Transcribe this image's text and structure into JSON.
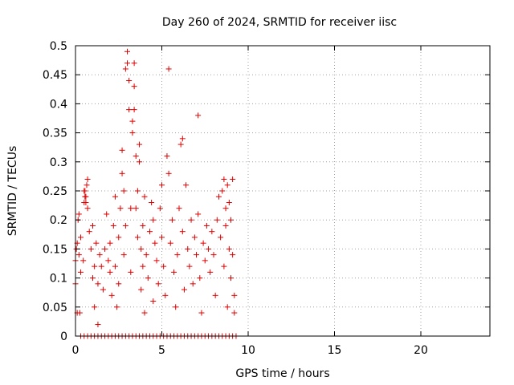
{
  "chart_data": {
    "type": "scatter",
    "title": "Day 260 of 2024, SRMTID for receiver iisc",
    "xlabel": "GPS time / hours",
    "ylabel": "SRMTID / TECUs",
    "xlim": [
      0,
      24
    ],
    "ylim": [
      0,
      0.5
    ],
    "x_ticks": [
      0,
      5,
      10,
      15,
      20
    ],
    "x_tick_labels": [
      "0",
      "5",
      "10",
      "15",
      "20"
    ],
    "y_ticks": [
      0,
      0.05,
      0.1,
      0.15,
      0.2,
      0.25,
      0.3,
      0.35,
      0.4,
      0.45,
      0.5
    ],
    "y_tick_labels": [
      "0",
      "0.05",
      "0.1",
      "0.15",
      "0.2",
      "0.25",
      "0.3",
      "0.35",
      "0.4",
      "0.45",
      "0.5"
    ],
    "grid": true,
    "marker": "plus",
    "marker_color": "#dd0000",
    "points": [
      [
        0.0,
        0.09
      ],
      [
        0.0,
        0.13
      ],
      [
        0.05,
        0.15
      ],
      [
        0.1,
        0.16
      ],
      [
        0.1,
        0.04
      ],
      [
        0.15,
        0.2
      ],
      [
        0.2,
        0.21
      ],
      [
        0.2,
        0.14
      ],
      [
        0.25,
        0.04
      ],
      [
        0.3,
        0.17
      ],
      [
        0.3,
        0.11
      ],
      [
        0.45,
        0.13
      ],
      [
        0.5,
        0.23
      ],
      [
        0.55,
        0.25
      ],
      [
        0.6,
        0.24
      ],
      [
        0.65,
        0.26
      ],
      [
        0.7,
        0.27
      ],
      [
        0.6,
        0.23
      ],
      [
        0.5,
        0.25
      ],
      [
        0.7,
        0.22
      ],
      [
        0.55,
        0.24
      ],
      [
        0.8,
        0.18
      ],
      [
        0.9,
        0.15
      ],
      [
        1.0,
        0.1
      ],
      [
        1.0,
        0.19
      ],
      [
        1.1,
        0.12
      ],
      [
        1.1,
        0.05
      ],
      [
        1.2,
        0.16
      ],
      [
        1.3,
        0.09
      ],
      [
        1.3,
        0.02
      ],
      [
        1.4,
        0.14
      ],
      [
        1.5,
        0.12
      ],
      [
        1.6,
        0.08
      ],
      [
        1.7,
        0.15
      ],
      [
        1.8,
        0.21
      ],
      [
        1.9,
        0.13
      ],
      [
        2.0,
        0.11
      ],
      [
        2.0,
        0.16
      ],
      [
        2.1,
        0.07
      ],
      [
        2.2,
        0.19
      ],
      [
        2.3,
        0.24
      ],
      [
        2.3,
        0.12
      ],
      [
        2.4,
        0.05
      ],
      [
        2.5,
        0.09
      ],
      [
        2.5,
        0.17
      ],
      [
        2.6,
        0.22
      ],
      [
        2.7,
        0.28
      ],
      [
        2.7,
        0.32
      ],
      [
        2.8,
        0.14
      ],
      [
        2.8,
        0.25
      ],
      [
        2.9,
        0.19
      ],
      [
        2.9,
        0.46
      ],
      [
        3.0,
        0.49
      ],
      [
        3.0,
        0.47
      ],
      [
        3.1,
        0.44
      ],
      [
        3.1,
        0.39
      ],
      [
        3.2,
        0.22
      ],
      [
        3.2,
        0.11
      ],
      [
        3.3,
        0.35
      ],
      [
        3.3,
        0.37
      ],
      [
        3.4,
        0.47
      ],
      [
        3.4,
        0.43
      ],
      [
        3.4,
        0.39
      ],
      [
        3.5,
        0.31
      ],
      [
        3.5,
        0.22
      ],
      [
        3.6,
        0.17
      ],
      [
        3.6,
        0.25
      ],
      [
        3.7,
        0.33
      ],
      [
        3.7,
        0.3
      ],
      [
        3.8,
        0.15
      ],
      [
        3.8,
        0.08
      ],
      [
        3.9,
        0.12
      ],
      [
        3.9,
        0.19
      ],
      [
        4.0,
        0.24
      ],
      [
        4.0,
        0.04
      ],
      [
        4.1,
        0.14
      ],
      [
        4.2,
        0.1
      ],
      [
        4.3,
        0.18
      ],
      [
        4.4,
        0.23
      ],
      [
        4.5,
        0.2
      ],
      [
        4.5,
        0.06
      ],
      [
        4.6,
        0.16
      ],
      [
        4.7,
        0.13
      ],
      [
        4.8,
        0.09
      ],
      [
        4.9,
        0.22
      ],
      [
        5.0,
        0.17
      ],
      [
        5.0,
        0.26
      ],
      [
        5.1,
        0.12
      ],
      [
        5.2,
        0.07
      ],
      [
        5.3,
        0.31
      ],
      [
        5.4,
        0.28
      ],
      [
        5.4,
        0.46
      ],
      [
        5.5,
        0.16
      ],
      [
        5.6,
        0.2
      ],
      [
        5.7,
        0.11
      ],
      [
        5.8,
        0.05
      ],
      [
        5.9,
        0.14
      ],
      [
        6.0,
        0.22
      ],
      [
        6.1,
        0.33
      ],
      [
        6.2,
        0.34
      ],
      [
        6.2,
        0.18
      ],
      [
        6.3,
        0.08
      ],
      [
        6.4,
        0.26
      ],
      [
        6.5,
        0.15
      ],
      [
        6.6,
        0.12
      ],
      [
        6.7,
        0.2
      ],
      [
        6.8,
        0.09
      ],
      [
        6.9,
        0.17
      ],
      [
        7.0,
        0.14
      ],
      [
        7.1,
        0.38
      ],
      [
        7.1,
        0.21
      ],
      [
        7.2,
        0.1
      ],
      [
        7.3,
        0.04
      ],
      [
        7.4,
        0.16
      ],
      [
        7.5,
        0.13
      ],
      [
        7.6,
        0.19
      ],
      [
        7.7,
        0.15
      ],
      [
        7.8,
        0.11
      ],
      [
        7.9,
        0.18
      ],
      [
        8.0,
        0.14
      ],
      [
        8.1,
        0.07
      ],
      [
        8.2,
        0.2
      ],
      [
        8.3,
        0.24
      ],
      [
        8.4,
        0.17
      ],
      [
        8.5,
        0.25
      ],
      [
        8.6,
        0.27
      ],
      [
        8.6,
        0.12
      ],
      [
        8.7,
        0.22
      ],
      [
        8.7,
        0.19
      ],
      [
        8.8,
        0.05
      ],
      [
        8.8,
        0.26
      ],
      [
        8.9,
        0.15
      ],
      [
        8.9,
        0.23
      ],
      [
        9.0,
        0.2
      ],
      [
        9.0,
        0.1
      ],
      [
        9.1,
        0.14
      ],
      [
        9.1,
        0.27
      ],
      [
        9.2,
        0.07
      ],
      [
        9.2,
        0.04
      ]
    ],
    "zero_points_x": [
      0.3,
      0.5,
      0.7,
      0.9,
      1.1,
      1.3,
      1.5,
      1.7,
      1.9,
      2.1,
      2.3,
      2.5,
      2.7,
      2.9,
      3.1,
      3.3,
      3.5,
      3.7,
      3.9,
      4.1,
      4.3,
      4.5,
      4.7,
      4.9,
      5.1,
      5.3,
      5.5,
      5.7,
      5.9,
      6.1,
      6.3,
      6.5,
      6.7,
      6.9,
      7.1,
      7.3,
      7.5,
      7.7,
      7.9,
      8.1,
      8.3,
      8.5,
      8.7,
      8.9,
      9.1,
      9.3
    ]
  }
}
